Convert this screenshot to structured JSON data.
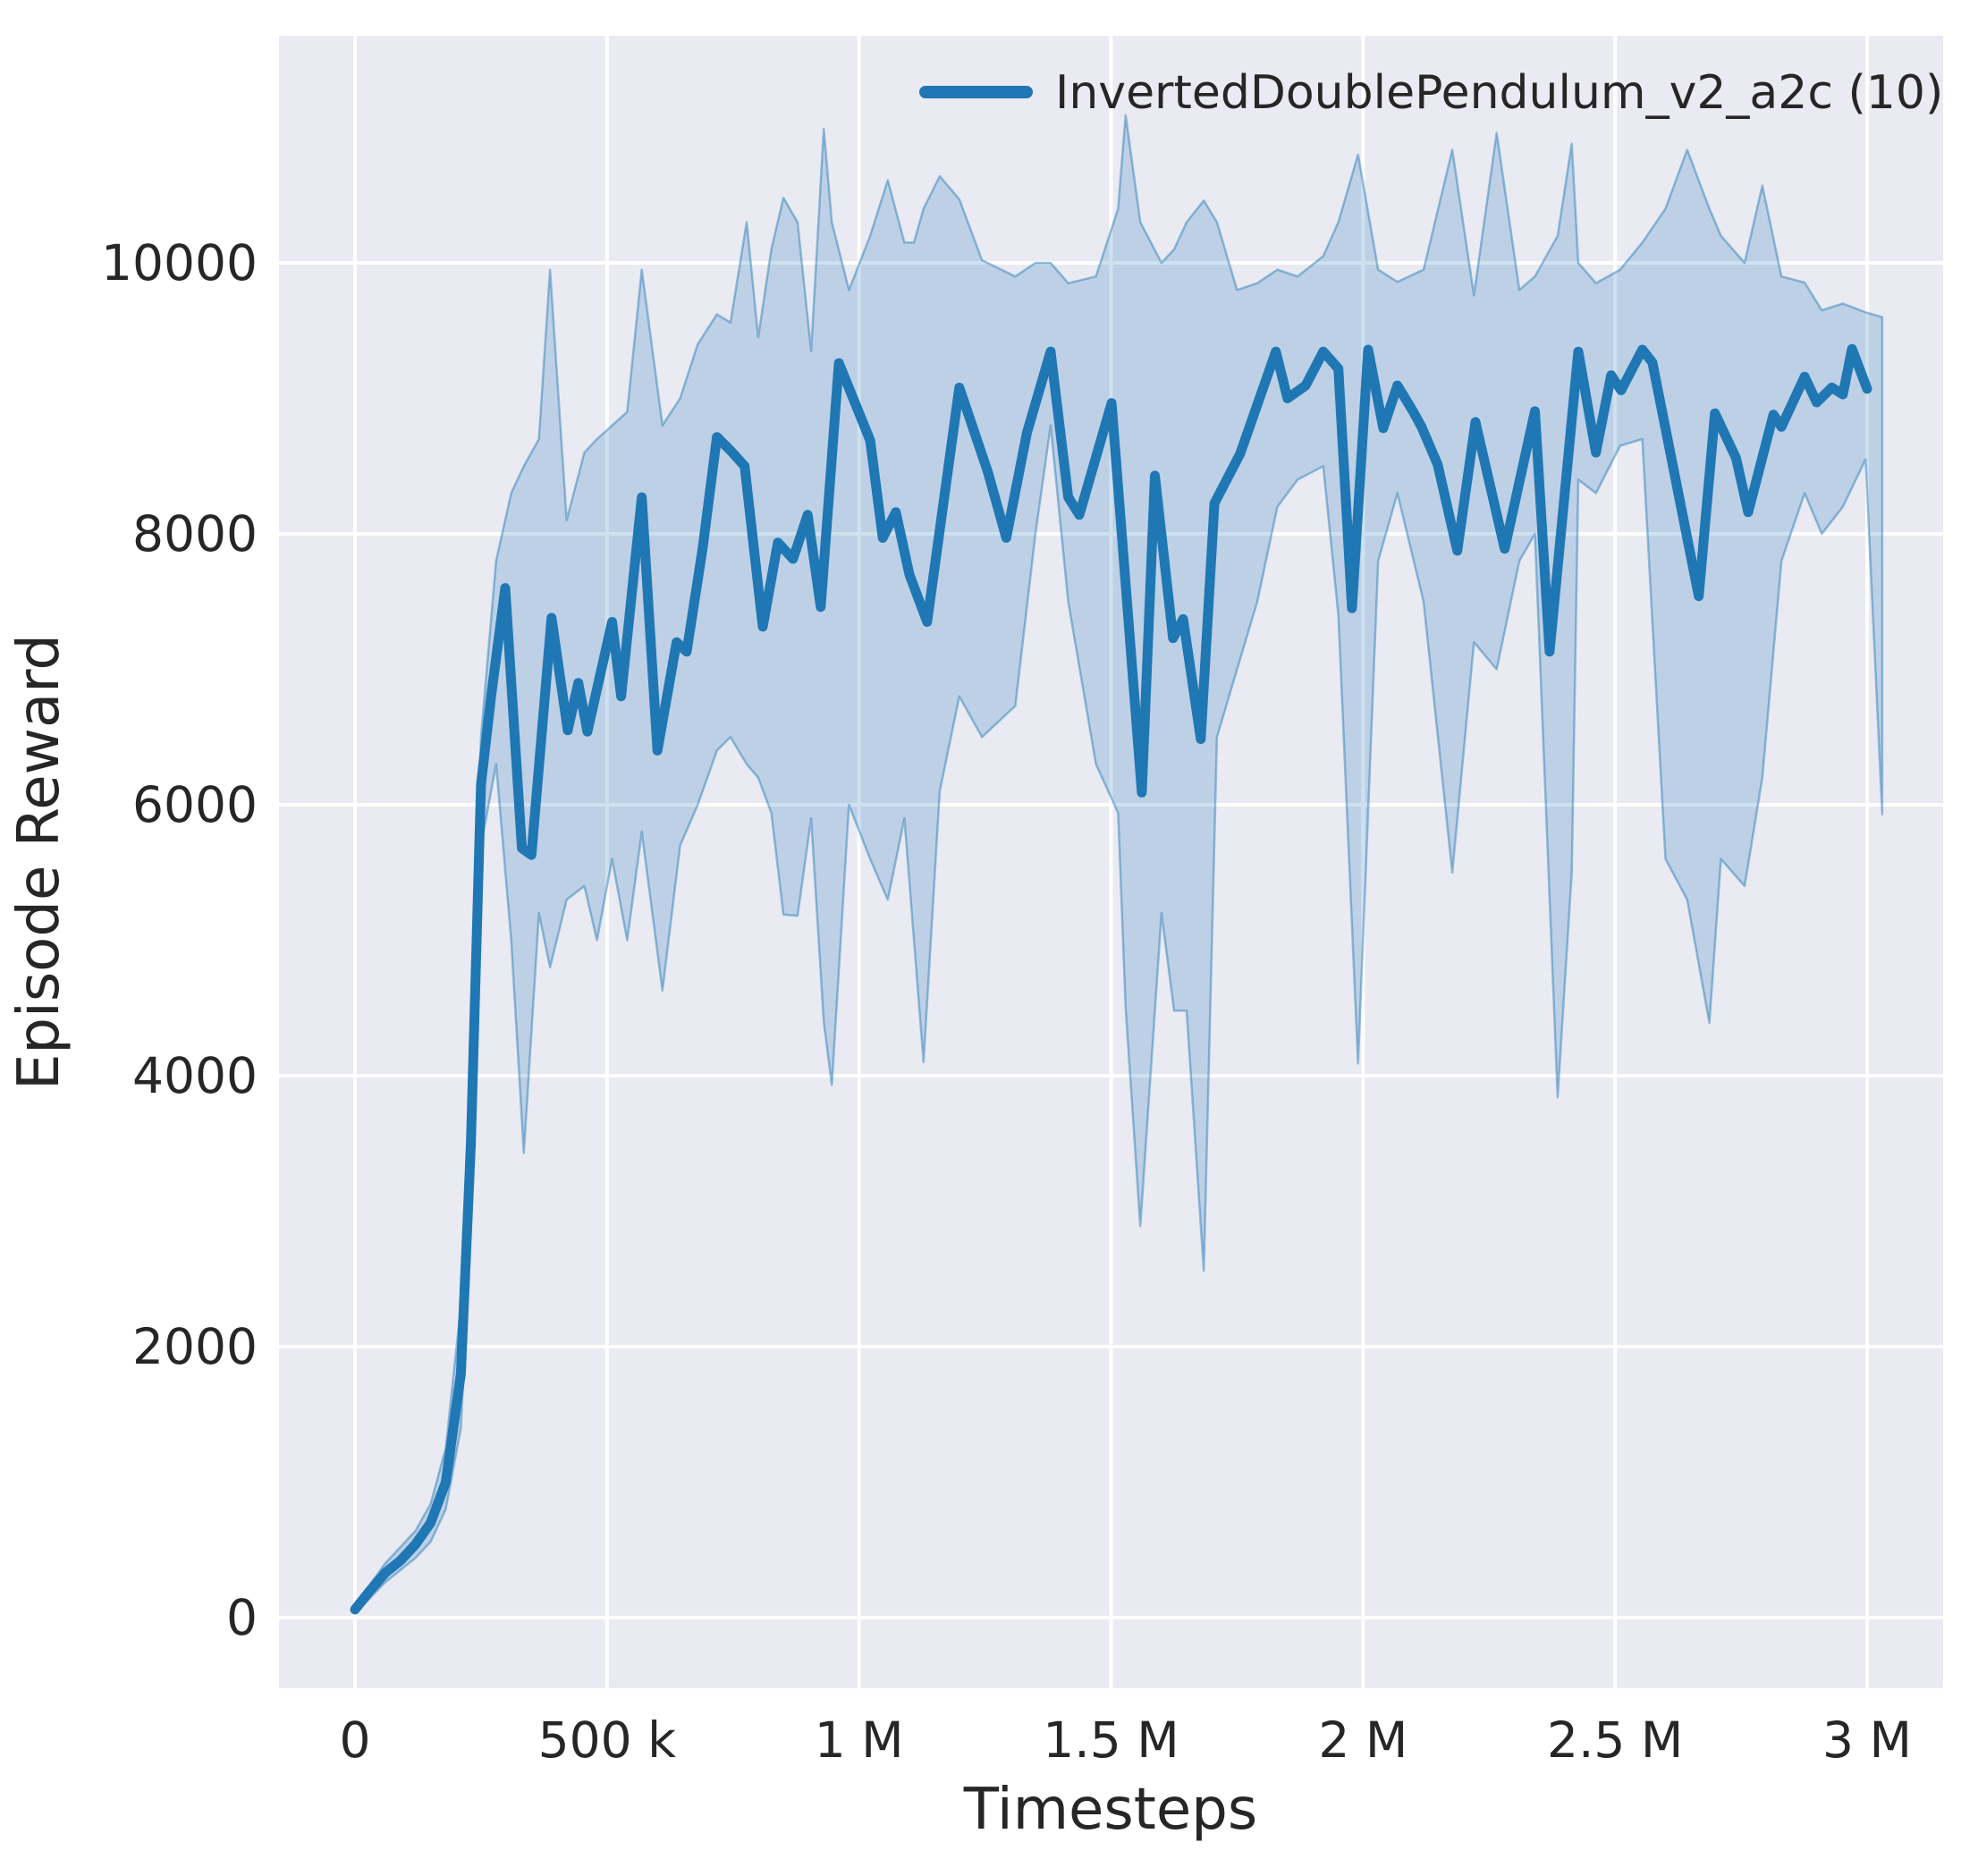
{
  "page": {
    "background": "#ffffff"
  },
  "chart_data": {
    "type": "line",
    "title": "",
    "xlabel": "Timesteps",
    "ylabel": "Episode Reward",
    "grid": true,
    "legend_position": "upper right",
    "axes_background": "#eaeaf2",
    "grid_color": "#ffffff",
    "text_color": "#262626",
    "xlim": [
      -150000,
      3150000
    ],
    "ylim": [
      -520,
      11680
    ],
    "xticks": {
      "values": [
        0,
        500000,
        1000000,
        1500000,
        2000000,
        2500000,
        3000000
      ],
      "labels": [
        "0",
        "500 k",
        "1 M",
        "1.5 M",
        "2 M",
        "2.5 M",
        "3 M"
      ]
    },
    "yticks": {
      "values": [
        0,
        2000,
        4000,
        6000,
        8000,
        10000
      ],
      "labels": [
        "0",
        "2000",
        "4000",
        "6000",
        "8000",
        "10000"
      ]
    },
    "series": [
      {
        "name": "InvertedDoublePendulum_v2_a2c (10)",
        "color": "#1f77b4",
        "line_width": 11,
        "points": [
          [
            0,
            60
          ],
          [
            30000,
            200
          ],
          [
            60000,
            330
          ],
          [
            90000,
            420
          ],
          [
            120000,
            540
          ],
          [
            150000,
            700
          ],
          [
            180000,
            1000
          ],
          [
            210000,
            1800
          ],
          [
            230000,
            3500
          ],
          [
            250000,
            6150
          ],
          [
            270000,
            6800
          ],
          [
            298000,
            7600
          ],
          [
            331000,
            5680
          ],
          [
            350000,
            5630
          ],
          [
            390000,
            7380
          ],
          [
            422000,
            6550
          ],
          [
            443000,
            6900
          ],
          [
            461000,
            6540
          ],
          [
            510000,
            7350
          ],
          [
            528000,
            6800
          ],
          [
            569000,
            8270
          ],
          [
            600000,
            6400
          ],
          [
            638000,
            7200
          ],
          [
            658000,
            7130
          ],
          [
            690000,
            7900
          ],
          [
            718000,
            8715
          ],
          [
            745000,
            8615
          ],
          [
            773000,
            8500
          ],
          [
            809000,
            7315
          ],
          [
            839000,
            7935
          ],
          [
            869000,
            7815
          ],
          [
            898000,
            8140
          ],
          [
            924000,
            7460
          ],
          [
            960000,
            9260
          ],
          [
            1022000,
            8690
          ],
          [
            1047000,
            7970
          ],
          [
            1073000,
            8160
          ],
          [
            1100000,
            7700
          ],
          [
            1135000,
            7350
          ],
          [
            1199000,
            9080
          ],
          [
            1256000,
            8450
          ],
          [
            1292000,
            7970
          ],
          [
            1333000,
            8745
          ],
          [
            1380000,
            9345
          ],
          [
            1415000,
            8270
          ],
          [
            1437000,
            8140
          ],
          [
            1501000,
            8965
          ],
          [
            1561000,
            6090
          ],
          [
            1587000,
            8430
          ],
          [
            1623000,
            7230
          ],
          [
            1643000,
            7370
          ],
          [
            1678000,
            6485
          ],
          [
            1705000,
            8225
          ],
          [
            1756000,
            8590
          ],
          [
            1827000,
            9345
          ],
          [
            1850000,
            9000
          ],
          [
            1886000,
            9095
          ],
          [
            1921000,
            9345
          ],
          [
            1951000,
            9220
          ],
          [
            1978000,
            7450
          ],
          [
            2010000,
            9360
          ],
          [
            2040000,
            8780
          ],
          [
            2068000,
            9095
          ],
          [
            2099000,
            8905
          ],
          [
            2116000,
            8790
          ],
          [
            2148000,
            8510
          ],
          [
            2187000,
            7875
          ],
          [
            2223000,
            8825
          ],
          [
            2281000,
            7890
          ],
          [
            2341000,
            8905
          ],
          [
            2370000,
            7130
          ],
          [
            2427000,
            9345
          ],
          [
            2462000,
            8600
          ],
          [
            2492000,
            9170
          ],
          [
            2512000,
            9060
          ],
          [
            2554000,
            9360
          ],
          [
            2574000,
            9265
          ],
          [
            2666000,
            7540
          ],
          [
            2698000,
            8890
          ],
          [
            2740000,
            8560
          ],
          [
            2764000,
            8160
          ],
          [
            2814000,
            8880
          ],
          [
            2830000,
            8790
          ],
          [
            2876000,
            9160
          ],
          [
            2900000,
            8970
          ],
          [
            2930000,
            9080
          ],
          [
            2952000,
            9030
          ],
          [
            2970000,
            9365
          ],
          [
            3000000,
            9070
          ]
        ]
      }
    ],
    "band": {
      "series": "InvertedDoublePendulum_v2_a2c (10)",
      "fill": "rgba(31,119,180,0.22)",
      "edge": "rgba(31,119,180,0.45)",
      "edge_width": 2.5,
      "points": [
        [
          0,
          30,
          90
        ],
        [
          60000,
          260,
          400
        ],
        [
          120000,
          440,
          640
        ],
        [
          150000,
          560,
          840
        ],
        [
          180000,
          800,
          1250
        ],
        [
          210000,
          1400,
          2300
        ],
        [
          230000,
          2900,
          4000
        ],
        [
          250000,
          5700,
          6500
        ],
        [
          280000,
          6300,
          7800
        ],
        [
          310000,
          5000,
          8300
        ],
        [
          335000,
          3430,
          8500
        ],
        [
          365000,
          5200,
          8700
        ],
        [
          387000,
          4800,
          9950
        ],
        [
          420000,
          5300,
          8100
        ],
        [
          455000,
          5400,
          8600
        ],
        [
          480000,
          5000,
          8700
        ],
        [
          510000,
          5600,
          8800
        ],
        [
          540000,
          5000,
          8900
        ],
        [
          569000,
          5800,
          9950
        ],
        [
          610000,
          4630,
          8800
        ],
        [
          645000,
          5700,
          9000
        ],
        [
          680000,
          6000,
          9400
        ],
        [
          718000,
          6400,
          9620
        ],
        [
          745000,
          6500,
          9560
        ],
        [
          777000,
          6300,
          10300
        ],
        [
          800000,
          6200,
          9450
        ],
        [
          826000,
          5940,
          10100
        ],
        [
          850000,
          5190,
          10480
        ],
        [
          878000,
          5180,
          10300
        ],
        [
          905000,
          5900,
          9350
        ],
        [
          930000,
          4400,
          10990
        ],
        [
          946000,
          3930,
          10300
        ],
        [
          980000,
          6000,
          9800
        ],
        [
          1022000,
          5600,
          10200
        ],
        [
          1057000,
          5300,
          10610
        ],
        [
          1090000,
          5900,
          10150
        ],
        [
          1109000,
          5000,
          10150
        ],
        [
          1128000,
          4100,
          10400
        ],
        [
          1160000,
          6100,
          10640
        ],
        [
          1199000,
          6800,
          10470
        ],
        [
          1244000,
          6500,
          10020
        ],
        [
          1310000,
          6730,
          9900
        ],
        [
          1350000,
          8000,
          10000
        ],
        [
          1380000,
          8800,
          10000
        ],
        [
          1415000,
          7500,
          9850
        ],
        [
          1470000,
          6300,
          9900
        ],
        [
          1514000,
          5940,
          10400
        ],
        [
          1529000,
          4500,
          11090
        ],
        [
          1558000,
          2890,
          10300
        ],
        [
          1600000,
          5200,
          10000
        ],
        [
          1625000,
          4480,
          10100
        ],
        [
          1650000,
          4480,
          10300
        ],
        [
          1684000,
          2560,
          10460
        ],
        [
          1710000,
          6500,
          10300
        ],
        [
          1750000,
          7000,
          9800
        ],
        [
          1790000,
          7500,
          9850
        ],
        [
          1830000,
          8200,
          9950
        ],
        [
          1870000,
          8400,
          9900
        ],
        [
          1921000,
          8500,
          10050
        ],
        [
          1951000,
          7400,
          10300
        ],
        [
          1990000,
          4090,
          10800
        ],
        [
          2030000,
          7800,
          9950
        ],
        [
          2068000,
          8300,
          9860
        ],
        [
          2120000,
          7500,
          9950
        ],
        [
          2177000,
          5500,
          10835
        ],
        [
          2220000,
          7200,
          9760
        ],
        [
          2265000,
          7000,
          10960
        ],
        [
          2310000,
          7800,
          9800
        ],
        [
          2341000,
          8000,
          9900
        ],
        [
          2386000,
          3840,
          10200
        ],
        [
          2414000,
          5500,
          10880
        ],
        [
          2427000,
          8400,
          10000
        ],
        [
          2462000,
          8300,
          9850
        ],
        [
          2510000,
          8650,
          9950
        ],
        [
          2554000,
          8700,
          10150
        ],
        [
          2600000,
          5600,
          10400
        ],
        [
          2643000,
          5300,
          10835
        ],
        [
          2687000,
          4390,
          10400
        ],
        [
          2710000,
          5600,
          10200
        ],
        [
          2757000,
          5400,
          10000
        ],
        [
          2792000,
          6200,
          10570
        ],
        [
          2830000,
          7800,
          9900
        ],
        [
          2876000,
          8300,
          9855
        ],
        [
          2910000,
          8000,
          9650
        ],
        [
          2952000,
          8200,
          9700
        ],
        [
          2997000,
          8550,
          9635
        ],
        [
          3030000,
          5930,
          9600
        ]
      ]
    }
  }
}
